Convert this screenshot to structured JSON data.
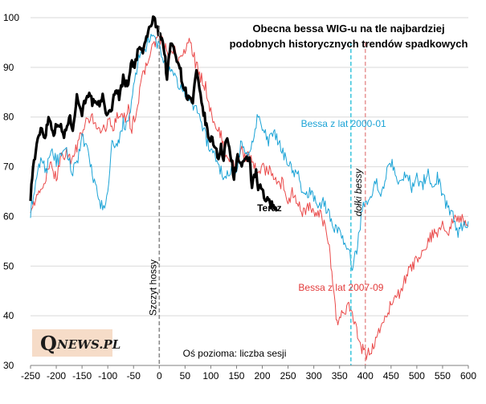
{
  "chart_data": {
    "type": "line",
    "title_lines": [
      "Obecna bessa WIG-u na tle najbardziej",
      "podobnych historycznych trendów spadkowych"
    ],
    "xlabel": "Oś pozioma: liczba sesji",
    "ylabel": "",
    "xlim": [
      -250,
      600
    ],
    "ylim": [
      30,
      100
    ],
    "xticks": [
      -250,
      -200,
      -150,
      -100,
      -50,
      0,
      50,
      100,
      150,
      200,
      250,
      300,
      350,
      400,
      450,
      500,
      550,
      600
    ],
    "yticks": [
      30,
      40,
      50,
      60,
      70,
      80,
      90,
      100
    ],
    "series": [
      {
        "name": "Teraz",
        "color": "#000000",
        "points": [
          [
            -250,
            64
          ],
          [
            -245,
            70
          ],
          [
            -238,
            74
          ],
          [
            -230,
            78
          ],
          [
            -222,
            76
          ],
          [
            -215,
            80
          ],
          [
            -205,
            77
          ],
          [
            -195,
            79
          ],
          [
            -185,
            76
          ],
          [
            -175,
            80
          ],
          [
            -168,
            78
          ],
          [
            -160,
            84
          ],
          [
            -150,
            81
          ],
          [
            -140,
            85
          ],
          [
            -130,
            83
          ],
          [
            -120,
            82
          ],
          [
            -110,
            84
          ],
          [
            -100,
            80
          ],
          [
            -92,
            82
          ],
          [
            -85,
            86
          ],
          [
            -78,
            84
          ],
          [
            -70,
            88
          ],
          [
            -62,
            86
          ],
          [
            -55,
            91
          ],
          [
            -48,
            90
          ],
          [
            -40,
            94
          ],
          [
            -32,
            93
          ],
          [
            -25,
            96
          ],
          [
            -18,
            98
          ],
          [
            -12,
            100
          ],
          [
            -5,
            98
          ],
          [
            0,
            97
          ],
          [
            5,
            96
          ],
          [
            10,
            93
          ],
          [
            15,
            88
          ],
          [
            22,
            95
          ],
          [
            30,
            93
          ],
          [
            38,
            91
          ],
          [
            45,
            87
          ],
          [
            55,
            84
          ],
          [
            65,
            83
          ],
          [
            72,
            89
          ],
          [
            80,
            84
          ],
          [
            88,
            80
          ],
          [
            95,
            76
          ],
          [
            105,
            75
          ],
          [
            115,
            72
          ],
          [
            120,
            74
          ],
          [
            125,
            71
          ],
          [
            130,
            76
          ],
          [
            138,
            73
          ],
          [
            145,
            68
          ],
          [
            152,
            72
          ],
          [
            160,
            70
          ],
          [
            168,
            71
          ],
          [
            175,
            72
          ],
          [
            180,
            66
          ],
          [
            188,
            69
          ],
          [
            192,
            65
          ],
          [
            198,
            66
          ],
          [
            205,
            63
          ],
          [
            210,
            64
          ],
          [
            215,
            62
          ],
          [
            222,
            63
          ],
          [
            228,
            61
          ]
        ]
      },
      {
        "name": "Bessa z lat 2000-01",
        "color": "#1ba3d6",
        "points": [
          [
            -250,
            61
          ],
          [
            -240,
            66
          ],
          [
            -230,
            72
          ],
          [
            -220,
            69
          ],
          [
            -210,
            74
          ],
          [
            -200,
            71
          ],
          [
            -190,
            72
          ],
          [
            -180,
            73
          ],
          [
            -170,
            69
          ],
          [
            -160,
            71
          ],
          [
            -150,
            76
          ],
          [
            -140,
            73
          ],
          [
            -128,
            68
          ],
          [
            -118,
            63
          ],
          [
            -108,
            62
          ],
          [
            -100,
            64
          ],
          [
            -92,
            75
          ],
          [
            -85,
            73
          ],
          [
            -78,
            75
          ],
          [
            -70,
            79
          ],
          [
            -60,
            78
          ],
          [
            -50,
            86
          ],
          [
            -42,
            91
          ],
          [
            -32,
            93
          ],
          [
            -22,
            95
          ],
          [
            -10,
            96
          ],
          [
            0,
            94
          ],
          [
            10,
            91
          ],
          [
            20,
            89
          ],
          [
            30,
            88
          ],
          [
            40,
            86
          ],
          [
            50,
            85
          ],
          [
            60,
            83
          ],
          [
            70,
            82
          ],
          [
            80,
            80
          ],
          [
            90,
            76
          ],
          [
            100,
            73
          ],
          [
            110,
            72
          ],
          [
            120,
            69
          ],
          [
            130,
            68
          ],
          [
            140,
            69
          ],
          [
            150,
            70
          ],
          [
            160,
            75
          ],
          [
            170,
            72
          ],
          [
            180,
            75
          ],
          [
            190,
            80
          ],
          [
            200,
            78
          ],
          [
            210,
            75
          ],
          [
            220,
            77
          ],
          [
            230,
            75
          ],
          [
            240,
            73
          ],
          [
            250,
            71
          ],
          [
            260,
            69
          ],
          [
            270,
            68
          ],
          [
            280,
            64
          ],
          [
            290,
            65
          ],
          [
            300,
            64
          ],
          [
            310,
            62
          ],
          [
            320,
            63
          ],
          [
            330,
            60
          ],
          [
            340,
            58
          ],
          [
            350,
            57
          ],
          [
            360,
            54
          ],
          [
            370,
            52
          ],
          [
            375,
            50
          ],
          [
            380,
            52
          ],
          [
            385,
            54
          ],
          [
            392,
            60
          ],
          [
            400,
            64
          ],
          [
            410,
            63
          ],
          [
            420,
            67
          ],
          [
            430,
            65
          ],
          [
            440,
            68
          ],
          [
            450,
            71
          ],
          [
            460,
            68
          ],
          [
            470,
            67
          ],
          [
            480,
            69
          ],
          [
            490,
            66
          ],
          [
            500,
            68
          ],
          [
            510,
            66
          ],
          [
            520,
            69
          ],
          [
            530,
            66
          ],
          [
            540,
            68
          ],
          [
            550,
            64
          ],
          [
            560,
            62
          ],
          [
            570,
            60
          ],
          [
            580,
            57
          ],
          [
            590,
            58
          ],
          [
            600,
            59
          ]
        ]
      },
      {
        "name": "Bessa z lat 2007-09",
        "color": "#ea4a4a",
        "points": [
          [
            -250,
            62
          ],
          [
            -240,
            63
          ],
          [
            -230,
            65
          ],
          [
            -220,
            68
          ],
          [
            -210,
            70
          ],
          [
            -200,
            68
          ],
          [
            -190,
            72
          ],
          [
            -180,
            73
          ],
          [
            -170,
            71
          ],
          [
            -160,
            74
          ],
          [
            -150,
            77
          ],
          [
            -140,
            79
          ],
          [
            -130,
            80
          ],
          [
            -120,
            78
          ],
          [
            -110,
            77
          ],
          [
            -100,
            79
          ],
          [
            -90,
            78
          ],
          [
            -80,
            81
          ],
          [
            -70,
            79
          ],
          [
            -60,
            82
          ],
          [
            -55,
            77
          ],
          [
            -50,
            79
          ],
          [
            -40,
            84
          ],
          [
            -30,
            89
          ],
          [
            -20,
            92
          ],
          [
            -10,
            95
          ],
          [
            0,
            96
          ],
          [
            10,
            94
          ],
          [
            20,
            92
          ],
          [
            30,
            93
          ],
          [
            40,
            91
          ],
          [
            50,
            94
          ],
          [
            60,
            95
          ],
          [
            70,
            91
          ],
          [
            80,
            88
          ],
          [
            90,
            86
          ],
          [
            100,
            81
          ],
          [
            110,
            78
          ],
          [
            120,
            76
          ],
          [
            130,
            72
          ],
          [
            140,
            71
          ],
          [
            150,
            70
          ],
          [
            160,
            73
          ],
          [
            170,
            72
          ],
          [
            180,
            71
          ],
          [
            190,
            69
          ],
          [
            200,
            70
          ],
          [
            210,
            69
          ],
          [
            220,
            69
          ],
          [
            230,
            66
          ],
          [
            240,
            67
          ],
          [
            250,
            63
          ],
          [
            260,
            65
          ],
          [
            270,
            62
          ],
          [
            280,
            61
          ],
          [
            290,
            62
          ],
          [
            300,
            60
          ],
          [
            310,
            61
          ],
          [
            320,
            58
          ],
          [
            330,
            54
          ],
          [
            335,
            48
          ],
          [
            340,
            43
          ],
          [
            345,
            38
          ],
          [
            350,
            40
          ],
          [
            360,
            41
          ],
          [
            370,
            42
          ],
          [
            375,
            41
          ],
          [
            380,
            38
          ],
          [
            385,
            36
          ],
          [
            390,
            34
          ],
          [
            395,
            33
          ],
          [
            400,
            32
          ],
          [
            410,
            33
          ],
          [
            420,
            35
          ],
          [
            430,
            38
          ],
          [
            440,
            40
          ],
          [
            450,
            42
          ],
          [
            460,
            44
          ],
          [
            470,
            45
          ],
          [
            480,
            48
          ],
          [
            490,
            50
          ],
          [
            500,
            51
          ],
          [
            510,
            52
          ],
          [
            520,
            55
          ],
          [
            530,
            56
          ],
          [
            540,
            57
          ],
          [
            550,
            58
          ],
          [
            560,
            57
          ],
          [
            570,
            59
          ],
          [
            580,
            60
          ],
          [
            590,
            59
          ],
          [
            600,
            58
          ]
        ]
      }
    ],
    "vlines": [
      {
        "x": 0,
        "color": "#8c8c8c",
        "label": "Szczyt hossy"
      },
      {
        "x": 372,
        "color": "#45c8de",
        "label": ""
      },
      {
        "x": 400,
        "color": "#e89999",
        "label": "dołki bessy"
      }
    ],
    "annotations": [
      {
        "text": "Bessa z lat 2000-01",
        "color": "#1ba3d6",
        "x": 275,
        "y": 78
      },
      {
        "text": "Teraz",
        "color": "#000000",
        "x": 190,
        "y": 61
      },
      {
        "text": "Bessa z lat 2007-09",
        "color": "#e23a3a",
        "x": 270,
        "y": 45
      }
    ]
  },
  "logo": {
    "q": "Q",
    "rest": "NEWS.PL"
  }
}
